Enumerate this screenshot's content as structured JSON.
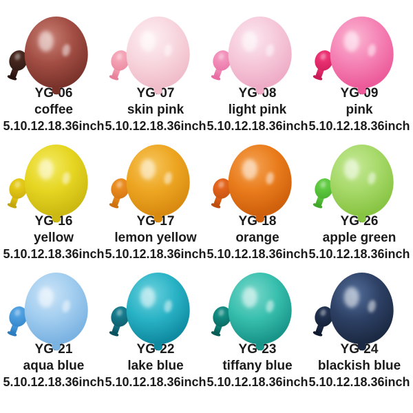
{
  "page": {
    "background": "#ffffff",
    "text_color": "#1b1b1b"
  },
  "catalog": {
    "cells": [
      {
        "code": "YG-06",
        "name": "coffee",
        "sizes": "5.10.12.18.36inch",
        "balloon_highlight": "#C98175",
        "balloon_color": "#A34E44",
        "balloon_shadow": "#7A332B",
        "small_balloon_color": "#47281F",
        "small_balloon_shadow": "#261310"
      },
      {
        "code": "YG-07",
        "name": "skin pink",
        "sizes": "5.10.12.18.36inch",
        "balloon_highlight": "#FDF0F3",
        "balloon_color": "#F8D7DF",
        "balloon_shadow": "#F0BCCA",
        "small_balloon_color": "#F4A4B6",
        "small_balloon_shadow": "#E9809A"
      },
      {
        "code": "YG-08",
        "name": "light pink",
        "sizes": "5.10.12.18.36inch",
        "balloon_highlight": "#FBE7EF",
        "balloon_color": "#F6C9DA",
        "balloon_shadow": "#EEABC6",
        "small_balloon_color": "#F292BB",
        "small_balloon_shadow": "#E96CA3"
      },
      {
        "code": "YG-09",
        "name": "pink",
        "sizes": "5.10.12.18.36inch",
        "balloon_highlight": "#FBB6D3",
        "balloon_color": "#F584B6",
        "balloon_shadow": "#EC5A99",
        "small_balloon_color": "#EA3172",
        "small_balloon_shadow": "#C91A58"
      },
      {
        "code": "YG-16",
        "name": "yellow",
        "sizes": "5.10.12.18.36inch",
        "balloon_highlight": "#F4EB66",
        "balloon_color": "#E6D521",
        "balloon_shadow": "#CBB812",
        "small_balloon_color": "#E4C816",
        "small_balloon_shadow": "#C3A60D"
      },
      {
        "code": "YG-17",
        "name": "lemon yellow",
        "sizes": "5.10.12.18.36inch",
        "balloon_highlight": "#F7C75E",
        "balloon_color": "#EDA622",
        "balloon_shadow": "#D88A10",
        "small_balloon_color": "#E98C20",
        "small_balloon_shadow": "#CE700E"
      },
      {
        "code": "YG-18",
        "name": "orange",
        "sizes": "5.10.12.18.36inch",
        "balloon_highlight": "#F5A455",
        "balloon_color": "#E97C1C",
        "balloon_shadow": "#CE5F0C",
        "small_balloon_color": "#E2641C",
        "small_balloon_shadow": "#BD4D0F"
      },
      {
        "code": "YG-26",
        "name": "apple green",
        "sizes": "5.10.12.18.36inch",
        "balloon_highlight": "#C7E998",
        "balloon_color": "#A6D969",
        "balloon_shadow": "#88C443",
        "small_balloon_color": "#5FCA41",
        "small_balloon_shadow": "#41A82A"
      },
      {
        "code": "YG-21",
        "name": "aqua blue",
        "sizes": "5.10.12.18.36inch",
        "balloon_highlight": "#CBE4F8",
        "balloon_color": "#A2CDEF",
        "balloon_shadow": "#7AB2E2",
        "small_balloon_color": "#4E9FE0",
        "small_balloon_shadow": "#2C7DC0"
      },
      {
        "code": "YG-22",
        "name": "lake blue",
        "sizes": "5.10.12.18.36inch",
        "balloon_highlight": "#6ED2DE",
        "balloon_color": "#2AB3C6",
        "balloon_shadow": "#0F8AA0",
        "small_balloon_color": "#167A8C",
        "small_balloon_shadow": "#0B525F"
      },
      {
        "code": "YG-23",
        "name": "tiffany blue",
        "sizes": "5.10.12.18.36inch",
        "balloon_highlight": "#7BD8CB",
        "balloon_color": "#38BFAE",
        "balloon_shadow": "#189488",
        "small_balloon_color": "#128A80",
        "small_balloon_shadow": "#085E57"
      },
      {
        "code": "YG-24",
        "name": "blackish blue",
        "sizes": "5.10.12.18.36inch",
        "balloon_highlight": "#55709B",
        "balloon_color": "#2E4166",
        "balloon_shadow": "#1B2942",
        "small_balloon_color": "#20304E",
        "small_balloon_shadow": "#101B30"
      }
    ]
  }
}
